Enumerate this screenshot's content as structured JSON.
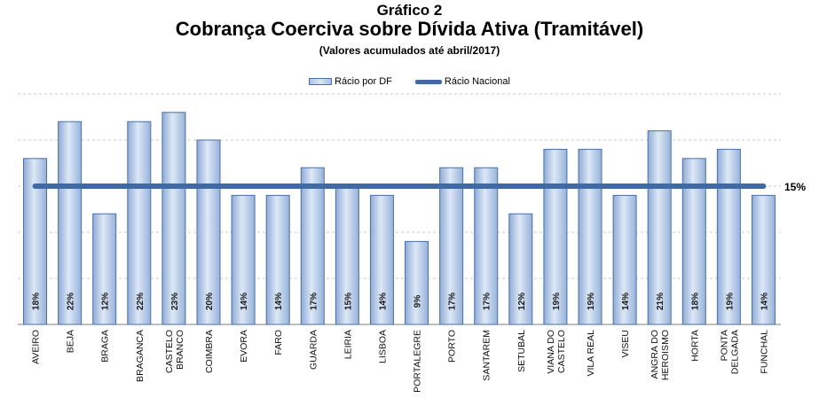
{
  "title": "Gráfico 2",
  "subtitle": "Cobrança Coerciva sobre Dívida Ativa (Tramitável)",
  "note": "(Valores acumulados até abril/2017)",
  "legend": {
    "bar_label": "Rácio por DF",
    "line_label": "Rácio Nacional"
  },
  "colors": {
    "bar_fill": "#a9c1e3",
    "bar_edge": "#4a6fa5",
    "line": "#3f6aa6",
    "grid": "#c8c8c8"
  },
  "chart_data": {
    "type": "bar",
    "categories": [
      "AVEIRO",
      "BEJA",
      "BRAGA",
      "BRAGANCA",
      "CASTELO BRANCO",
      "COIMBRA",
      "EVORA",
      "FARO",
      "GUARDA",
      "LEIRIA",
      "LISBOA",
      "PORTALEGRE",
      "PORTO",
      "SANTAREM",
      "SETUBAL",
      "VIANA DO CASTELO",
      "VILA REAL",
      "VISEU",
      "ANGRA DO HEROISMO",
      "HORTA",
      "PONTA DELGADA",
      "FUNCHAL"
    ],
    "series": [
      {
        "name": "Rácio por DF",
        "values": [
          18,
          22,
          12,
          22,
          23,
          20,
          14,
          14,
          17,
          15,
          14,
          9,
          17,
          17,
          12,
          19,
          19,
          14,
          21,
          18,
          19,
          14
        ],
        "labels": [
          "18%",
          "22%",
          "12%",
          "22%",
          "23%",
          "20%",
          "14%",
          "14%",
          "17%",
          "15%",
          "14%",
          "9%",
          "17%",
          "17%",
          "12%",
          "19%",
          "19%",
          "14%",
          "21%",
          "18%",
          "19%",
          "14%"
        ]
      },
      {
        "name": "Rácio Nacional",
        "value": 15,
        "label": "15%"
      }
    ],
    "ylim": [
      0,
      25
    ],
    "grid": true,
    "legend_position": "top-center"
  }
}
